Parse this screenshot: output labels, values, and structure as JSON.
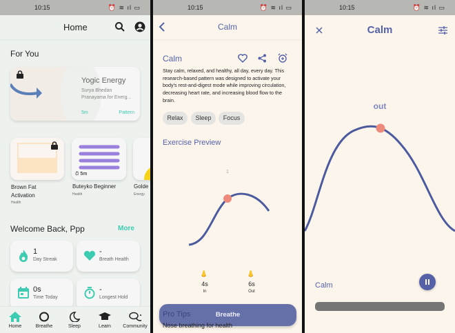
{
  "status_bar": {
    "time": "10:15",
    "battery": "75"
  },
  "home": {
    "title": "Home",
    "for_you": "For You",
    "featured": {
      "title": "Yogic Energy",
      "subtitle": "Surya Bhedan Pranayama for Energ...",
      "duration": "5m",
      "type": "Pattern",
      "locked": true
    },
    "cards": [
      {
        "title": "Brown Fat Activation",
        "category": "Health",
        "locked": true
      },
      {
        "title": "Buteyko Beginner",
        "category": "Health",
        "duration": "5m"
      },
      {
        "title": "Golde",
        "category": "Energy"
      }
    ],
    "welcome": "Welcome Back, Ppp",
    "more": "More",
    "stats": [
      {
        "value": "1",
        "label": "Day Streak",
        "icon": "flame-icon"
      },
      {
        "value": "-",
        "label": "Breath Health",
        "icon": "heart-icon"
      },
      {
        "value": "0s",
        "label": "Time Today",
        "icon": "calendar-icon"
      },
      {
        "value": "-",
        "label": "Longest Hold",
        "icon": "stopwatch-icon"
      }
    ],
    "nav": [
      {
        "label": "Home",
        "active": true
      },
      {
        "label": "Breathe"
      },
      {
        "label": "Sleep"
      },
      {
        "label": "Learn"
      },
      {
        "label": "Community"
      }
    ]
  },
  "detail": {
    "header": "Calm",
    "title": "Calm",
    "description": "Stay calm, relaxed, and healthy, all day, every day. This research-based pattern was designed to activate your body's rest-and-digest mode while improving circulation, decreasing heart rate, and increasing blood flow to the brain.",
    "tags": [
      "Relax",
      "Sleep",
      "Focus"
    ],
    "preview_title": "Exercise Preview",
    "preview_count": "1",
    "phases": [
      {
        "value": "4s",
        "label": "In"
      },
      {
        "value": "6s",
        "label": "Out"
      }
    ],
    "breathe_button": "Breathe",
    "pro_tips": "Pro Tips",
    "tip": "Nose breathing for health"
  },
  "session": {
    "title": "Calm",
    "phase": "out",
    "label": "Calm",
    "progress": 0
  },
  "colors": {
    "accent": "#3dcbb1",
    "indigo": "#5562a8",
    "dot": "#ee8a7c"
  }
}
